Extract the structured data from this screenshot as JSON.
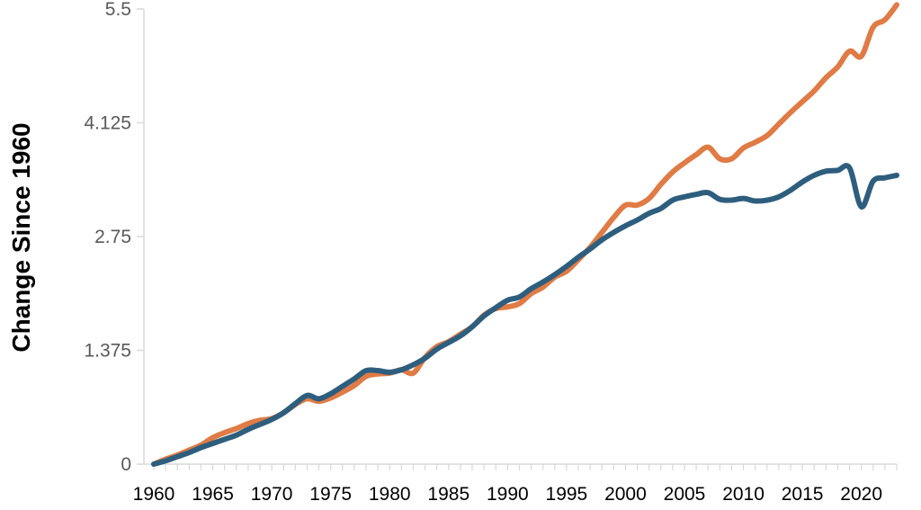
{
  "chart_data": {
    "type": "line",
    "title": "",
    "xlabel": "",
    "ylabel": "Change Since 1960",
    "xlim": [
      1960,
      2023
    ],
    "ylim": [
      0,
      5.5
    ],
    "x_ticks": [
      "1960",
      "1965",
      "1970",
      "1975",
      "1980",
      "1985",
      "1990",
      "1995",
      "2000",
      "2005",
      "2010",
      "2015",
      "2020"
    ],
    "y_ticks": [
      "0",
      "1.375",
      "2.75",
      "4.125",
      "5.5"
    ],
    "y_tick_values": [
      0,
      1.375,
      2.75,
      4.125,
      5.5
    ],
    "grid": false,
    "legend": "none",
    "x": [
      1960,
      1961,
      1962,
      1963,
      1964,
      1965,
      1966,
      1967,
      1968,
      1969,
      1970,
      1971,
      1972,
      1973,
      1974,
      1975,
      1976,
      1977,
      1978,
      1979,
      1980,
      1981,
      1982,
      1983,
      1984,
      1985,
      1986,
      1987,
      1988,
      1989,
      1990,
      1991,
      1992,
      1993,
      1994,
      1995,
      1996,
      1997,
      1998,
      1999,
      2000,
      2001,
      2002,
      2003,
      2004,
      2005,
      2006,
      2007,
      2008,
      2009,
      2010,
      2011,
      2012,
      2013,
      2014,
      2015,
      2016,
      2017,
      2018,
      2019,
      2020,
      2021,
      2022,
      2023
    ],
    "series": [
      {
        "color": "#E07B45",
        "values": [
          0.0,
          0.06,
          0.11,
          0.17,
          0.23,
          0.32,
          0.38,
          0.43,
          0.49,
          0.53,
          0.55,
          0.62,
          0.72,
          0.79,
          0.76,
          0.8,
          0.87,
          0.95,
          1.06,
          1.09,
          1.1,
          1.14,
          1.1,
          1.29,
          1.42,
          1.48,
          1.57,
          1.66,
          1.8,
          1.88,
          1.9,
          1.94,
          2.06,
          2.14,
          2.26,
          2.33,
          2.47,
          2.62,
          2.8,
          2.98,
          3.13,
          3.13,
          3.21,
          3.38,
          3.53,
          3.64,
          3.74,
          3.83,
          3.69,
          3.69,
          3.82,
          3.89,
          3.97,
          4.11,
          4.25,
          4.38,
          4.51,
          4.67,
          4.8,
          4.99,
          4.93,
          5.28,
          5.37,
          5.55
        ]
      },
      {
        "color": "#2E5E7E",
        "values": [
          0.0,
          0.04,
          0.09,
          0.14,
          0.2,
          0.25,
          0.3,
          0.35,
          0.42,
          0.48,
          0.54,
          0.62,
          0.73,
          0.83,
          0.79,
          0.85,
          0.94,
          1.03,
          1.13,
          1.13,
          1.11,
          1.14,
          1.2,
          1.28,
          1.39,
          1.47,
          1.55,
          1.66,
          1.79,
          1.89,
          1.98,
          2.02,
          2.12,
          2.2,
          2.29,
          2.39,
          2.5,
          2.6,
          2.71,
          2.8,
          2.88,
          2.95,
          3.03,
          3.09,
          3.19,
          3.23,
          3.26,
          3.28,
          3.2,
          3.19,
          3.21,
          3.18,
          3.19,
          3.23,
          3.31,
          3.41,
          3.49,
          3.54,
          3.55,
          3.58,
          3.11,
          3.42,
          3.46,
          3.49
        ]
      }
    ]
  }
}
